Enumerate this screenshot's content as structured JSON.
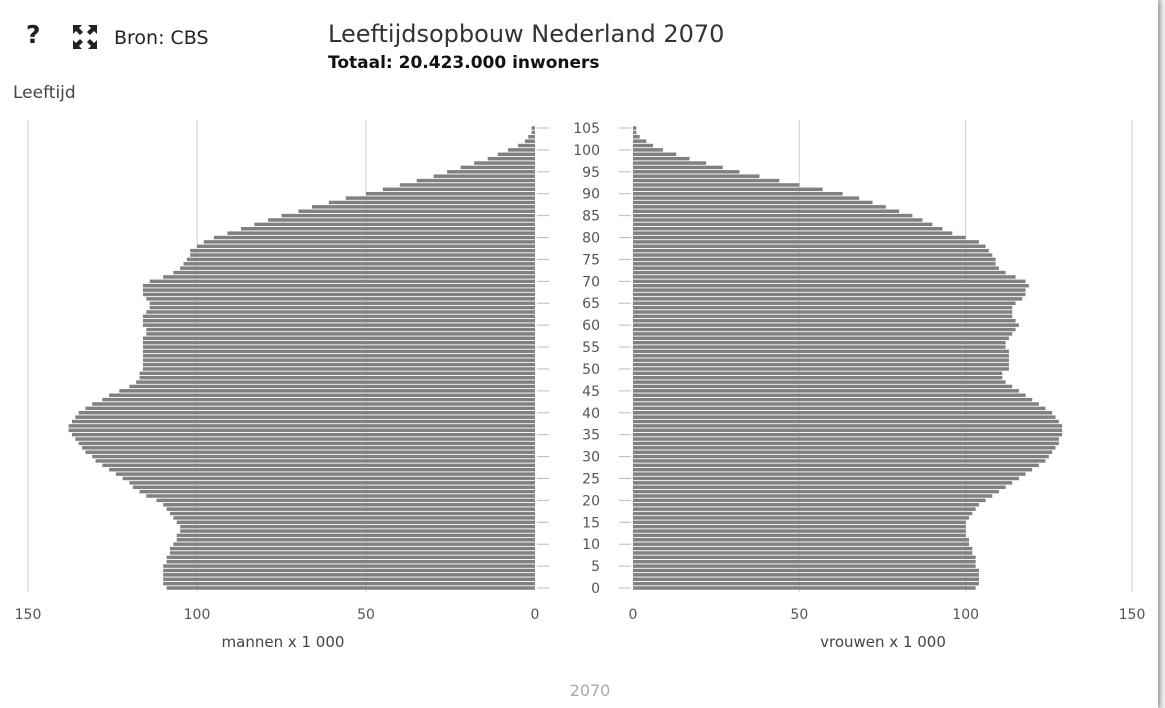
{
  "header": {
    "help_label": "?",
    "fullscreen_icon": "expand-arrows-icon",
    "source": "Bron: CBS",
    "title": "Leeftijdsopbouw Nederland 2070",
    "subtitle": "Totaal: 20.423.000 inwoners"
  },
  "footer": {
    "year": "2070"
  },
  "chart_data": {
    "type": "bar",
    "subtype": "population-pyramid",
    "title": "Leeftijdsopbouw Nederland 2070",
    "subtitle": "Totaal: 20.423.000 inwoners",
    "ylabel": "Leeftijd",
    "year_label": "2070",
    "bar_color": "#808080",
    "grid": true,
    "age_ticks": [
      0,
      5,
      10,
      15,
      20,
      25,
      30,
      35,
      40,
      45,
      50,
      55,
      60,
      65,
      70,
      75,
      80,
      85,
      90,
      95,
      100,
      105
    ],
    "ages": {
      "min": 0,
      "max": 105
    },
    "left": {
      "label": "mannen x 1 000",
      "xlim": [
        0,
        150
      ],
      "ticks": [
        150,
        100,
        50,
        0
      ]
    },
    "right": {
      "label": "vrouwen x 1 000",
      "xlim": [
        0,
        150
      ],
      "ticks": [
        0,
        50,
        100,
        150
      ]
    },
    "series": [
      {
        "name": "mannen x 1 000",
        "values": [
          109,
          110,
          110,
          110,
          110,
          110,
          109,
          109,
          108,
          108,
          107,
          106,
          106,
          105,
          105,
          106,
          107,
          108,
          109,
          110,
          112,
          115,
          117,
          119,
          120,
          122,
          124,
          126,
          128,
          130,
          131,
          133,
          134,
          135,
          136,
          137,
          138,
          138,
          137,
          136,
          135,
          133,
          131,
          128,
          126,
          123,
          120,
          118,
          117,
          117,
          116,
          116,
          116,
          116,
          116,
          116,
          116,
          116,
          115,
          115,
          116,
          116,
          116,
          115,
          114,
          114,
          115,
          116,
          116,
          116,
          114,
          110,
          107,
          105,
          104,
          103,
          102,
          102,
          100,
          98,
          95,
          91,
          87,
          83,
          79,
          75,
          70,
          66,
          61,
          56,
          50,
          45,
          40,
          35,
          30,
          26,
          22,
          18,
          14,
          11,
          8,
          5,
          3,
          2,
          1,
          1
        ]
      },
      {
        "name": "vrouwen x 1 000",
        "values": [
          103,
          104,
          104,
          104,
          104,
          103,
          103,
          103,
          102,
          102,
          101,
          101,
          100,
          100,
          100,
          100,
          101,
          102,
          103,
          104,
          106,
          108,
          110,
          112,
          114,
          116,
          118,
          120,
          122,
          124,
          125,
          126,
          127,
          128,
          128,
          129,
          129,
          129,
          128,
          127,
          126,
          124,
          122,
          120,
          118,
          116,
          114,
          112,
          111,
          111,
          113,
          113,
          113,
          113,
          113,
          112,
          112,
          113,
          114,
          115,
          116,
          115,
          114,
          114,
          114,
          115,
          117,
          118,
          118,
          119,
          118,
          115,
          112,
          110,
          109,
          109,
          108,
          107,
          106,
          104,
          100,
          96,
          93,
          90,
          87,
          84,
          80,
          76,
          72,
          68,
          63,
          57,
          50,
          44,
          38,
          32,
          27,
          22,
          17,
          13,
          9,
          6,
          4,
          2,
          1,
          1
        ]
      }
    ]
  }
}
